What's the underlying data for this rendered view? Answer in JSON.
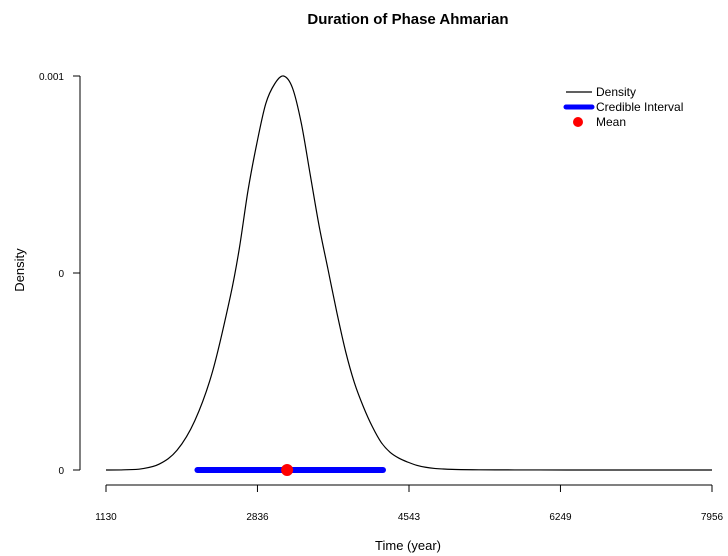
{
  "chart_data": {
    "type": "line",
    "title": "Duration of Phase Ahmarian",
    "xlabel": "Time (year)",
    "ylabel": "Density",
    "xlim": [
      1130,
      7956
    ],
    "ylim": [
      0,
      0.001
    ],
    "x_ticks": [
      "1130",
      "2836",
      "4543",
      "6249",
      "7956"
    ],
    "x_tick_values": [
      1130,
      2836,
      4543,
      6249,
      7956
    ],
    "y_ticks": [
      "0",
      "0",
      "0.001"
    ],
    "y_tick_values": [
      0,
      0.0005,
      0.001
    ],
    "series": [
      {
        "name": "Density",
        "color": "#000000",
        "x": [
          1130,
          1330,
          1530,
          1730,
          1930,
          2130,
          2330,
          2530,
          2630,
          2730,
          2830,
          2930,
          3030,
          3130,
          3230,
          3330,
          3430,
          3530,
          3630,
          3730,
          3830,
          3930,
          4030,
          4130,
          4230,
          4330,
          4430,
          4530,
          4630,
          4730,
          4830,
          4930,
          5030,
          5130,
          5330,
          5530,
          5730,
          6000,
          6500,
          7000,
          7500,
          7956
        ],
        "y": [
          0,
          5e-07,
          3e-06,
          1.5e-05,
          5e-05,
          0.000125,
          0.00025,
          0.00044,
          0.00056,
          0.00071,
          0.00083,
          0.00093,
          0.00098,
          0.001,
          0.00097,
          0.00088,
          0.00075,
          0.00062,
          0.00051,
          0.0004,
          0.0003,
          0.00022,
          0.00016,
          0.00011,
          7e-05,
          4.5e-05,
          3e-05,
          2e-05,
          1.2e-05,
          7e-06,
          4e-06,
          2.5e-06,
          1.5e-06,
          1e-06,
          5e-07,
          3e-07,
          2e-07,
          1e-07,
          5e-08,
          2e-08,
          1e-08,
          0
        ]
      }
    ],
    "credible_interval": {
      "name": "Credible Interval",
      "from": 2160,
      "to": 4250,
      "color": "#0000ff"
    },
    "mean": {
      "name": "Mean",
      "value": 3170,
      "color": "#ff0000"
    },
    "legend": {
      "placement": "top-right",
      "entries": [
        "Density",
        "Credible Interval",
        "Mean"
      ]
    },
    "grid": false
  }
}
